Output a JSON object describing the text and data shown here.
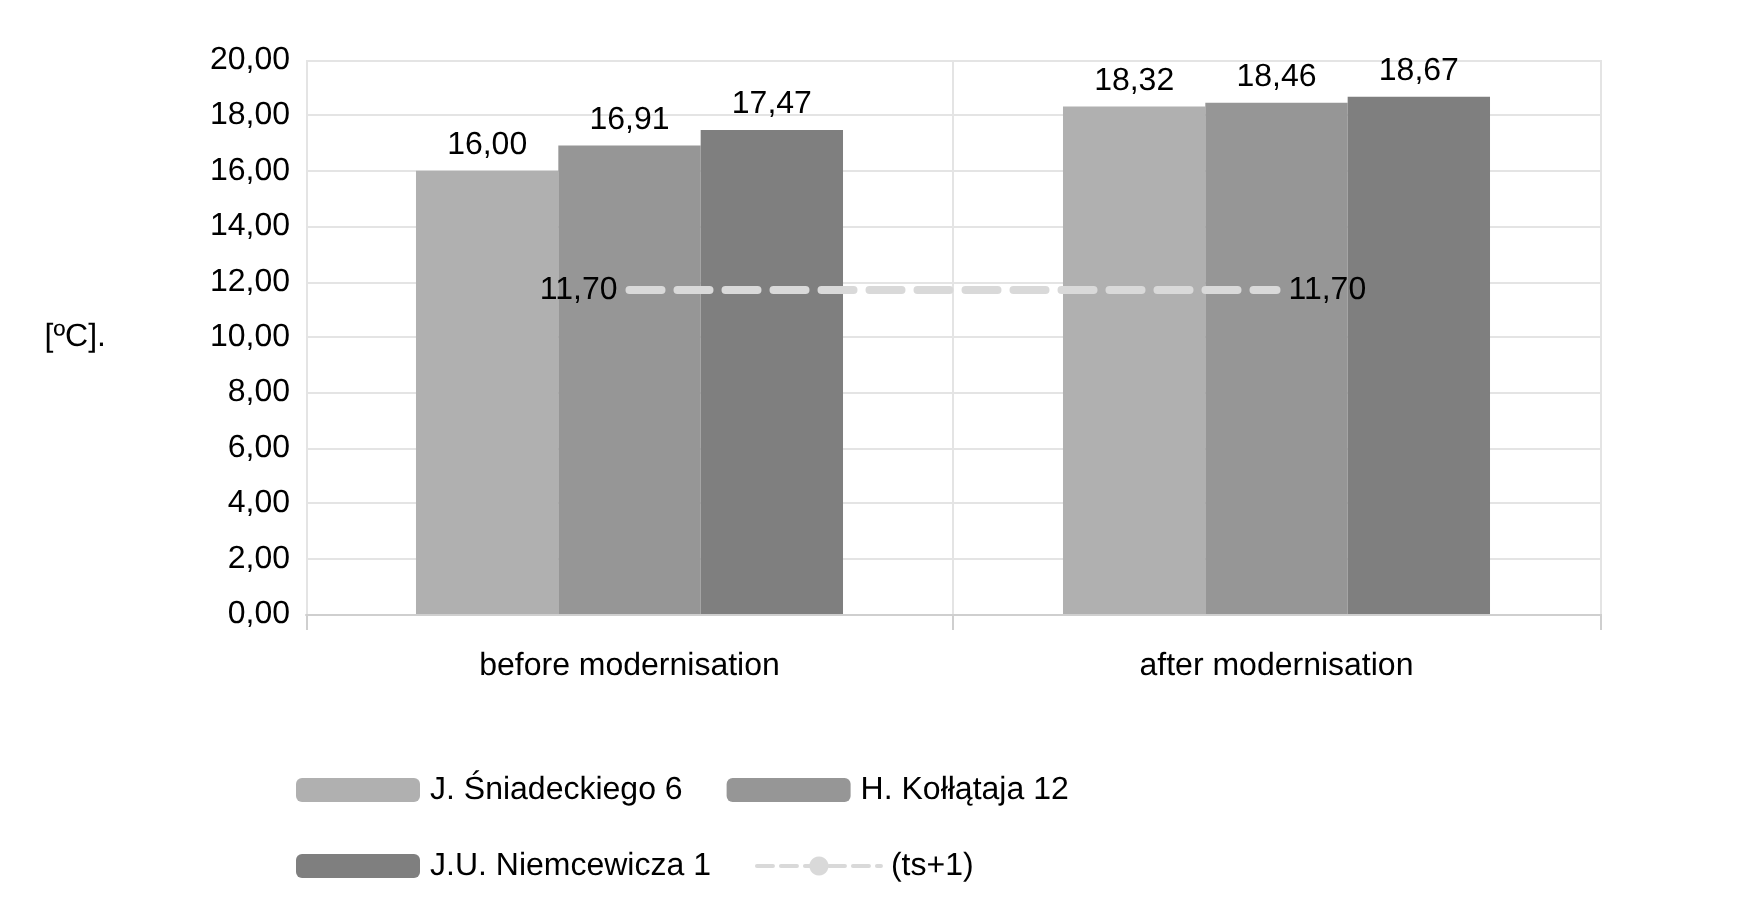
{
  "chart_data": {
    "type": "bar",
    "ylabel": "[ºC].",
    "categories": [
      "before modernisation",
      "after modernisation"
    ],
    "series": [
      {
        "name": "J. Śniadeckiego 6",
        "color": "#b0b0b0",
        "values": [
          16.0,
          18.32
        ],
        "value_labels": [
          "16,00",
          "18,32"
        ]
      },
      {
        "name": "H. Kołłątaja 12",
        "color": "#969696",
        "values": [
          16.91,
          18.46
        ],
        "value_labels": [
          "16,91",
          "18,46"
        ]
      },
      {
        "name": "J.U. Niemcewicza 1",
        "color": "#7f7f7f",
        "values": [
          17.47,
          18.67
        ],
        "value_labels": [
          "17,47",
          "18,67"
        ]
      },
      {
        "name": "(ts+1)",
        "type": "line",
        "color": "#d9d9d9",
        "line_style": "dashed",
        "marker": "none",
        "values": [
          11.7,
          11.7
        ],
        "value_labels": [
          "11,70",
          "11,70"
        ]
      }
    ],
    "ylim": [
      0,
      20
    ],
    "yticks": [
      {
        "value": 0,
        "label": "0,00"
      },
      {
        "value": 2,
        "label": "2,00"
      },
      {
        "value": 4,
        "label": "4,00"
      },
      {
        "value": 6,
        "label": "6,00"
      },
      {
        "value": 8,
        "label": "8,00"
      },
      {
        "value": 10,
        "label": "10,00"
      },
      {
        "value": 12,
        "label": "12,00"
      },
      {
        "value": 14,
        "label": "14,00"
      },
      {
        "value": 16,
        "label": "16,00"
      },
      {
        "value": 18,
        "label": "18,00"
      },
      {
        "value": 20,
        "label": "20,00"
      }
    ],
    "grid": true,
    "legend": "bottom"
  }
}
